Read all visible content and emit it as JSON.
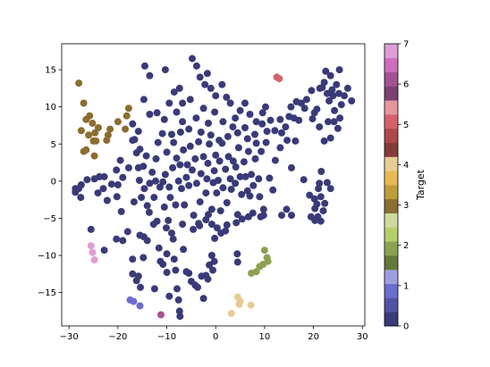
{
  "chart_data": {
    "type": "scatter",
    "title": "",
    "xlabel": "",
    "ylabel": "",
    "xlim": [
      -31.5,
      30.5
    ],
    "ylim": [
      -19.5,
      18.5
    ],
    "xticks": [
      -30,
      -20,
      -10,
      0,
      10,
      20,
      30
    ],
    "yticks": [
      -15,
      -10,
      -5,
      0,
      5,
      10,
      15
    ],
    "grid": false,
    "colorbar": {
      "label": "Target",
      "range": [
        0,
        7
      ],
      "ticks": [
        0,
        1,
        2,
        3,
        4,
        5,
        6,
        7
      ],
      "colors": [
        "#393b79",
        "#5254a3",
        "#6b6ecf",
        "#9c9ede",
        "#637939",
        "#8ca252",
        "#b5cf6b",
        "#cedb9c",
        "#8c6d31",
        "#bd9e39",
        "#e7ba52",
        "#e7cb94",
        "#843c39",
        "#ad494a",
        "#d6616b",
        "#e7969c",
        "#7b4173",
        "#a55194",
        "#ce6dbd",
        "#de9ed6"
      ]
    },
    "classes": [
      {
        "target": 0,
        "color": "#393b79"
      },
      {
        "target": 1,
        "color": "#6b6ecf"
      },
      {
        "target": 2,
        "color": "#8ca252"
      },
      {
        "target": 3,
        "color": "#8c6d31"
      },
      {
        "target": 4,
        "color": "#e7cb94"
      },
      {
        "target": 5,
        "color": "#d6616b"
      },
      {
        "target": 6,
        "color": "#a55194"
      },
      {
        "target": 7,
        "color": "#de9ed6"
      }
    ],
    "points": [
      [
        -28,
        13.2,
        3
      ],
      [
        -27,
        10.5,
        3
      ],
      [
        -26.5,
        8.3,
        3
      ],
      [
        -25.8,
        8.8,
        3
      ],
      [
        -25.2,
        7.8,
        3
      ],
      [
        -24.7,
        6.5,
        3
      ],
      [
        -27.5,
        6.8,
        3
      ],
      [
        -26,
        6.2,
        3
      ],
      [
        -25,
        5.4,
        3
      ],
      [
        -24.5,
        5.4,
        3
      ],
      [
        -24,
        7.2,
        3
      ],
      [
        -22,
        6.2,
        3
      ],
      [
        -22.3,
        5.5,
        3
      ],
      [
        -21.6,
        7.0,
        3
      ],
      [
        -20,
        8.0,
        3
      ],
      [
        -17.8,
        9.8,
        3
      ],
      [
        -18.2,
        8.8,
        3
      ],
      [
        -18.5,
        7.0,
        3
      ],
      [
        -27,
        4.0,
        3
      ],
      [
        -26.5,
        4.2,
        3
      ],
      [
        -24.8,
        3.4,
        3
      ],
      [
        -25.5,
        -8.7,
        7
      ],
      [
        -25.2,
        -9.6,
        7
      ],
      [
        -24.8,
        -10.6,
        7
      ],
      [
        -17.5,
        -16.0,
        1
      ],
      [
        -16.8,
        -16.2,
        1
      ],
      [
        -15.5,
        -16.8,
        1
      ],
      [
        -11.2,
        -18.0,
        6
      ],
      [
        12.5,
        14.0,
        5
      ],
      [
        13,
        13.8,
        5
      ],
      [
        10,
        -9.3,
        2
      ],
      [
        10.5,
        -10.3,
        2
      ],
      [
        10.7,
        -10.8,
        2
      ],
      [
        9.7,
        -11.2,
        2
      ],
      [
        9.0,
        -11.5,
        2
      ],
      [
        8.3,
        -12.2,
        2
      ],
      [
        7.3,
        -12.4,
        2
      ],
      [
        4.5,
        -15.6,
        4
      ],
      [
        5,
        -16.2,
        4
      ],
      [
        4.8,
        -16.6,
        4
      ],
      [
        7.2,
        -16.7,
        4
      ],
      [
        3.2,
        -17.8,
        4
      ],
      [
        -28.7,
        -1.0,
        0
      ],
      [
        -28.7,
        -1.5,
        0
      ],
      [
        -28,
        -1.0,
        0
      ],
      [
        -27.5,
        -0.5,
        0
      ],
      [
        -26.3,
        0.2,
        0
      ],
      [
        -24.8,
        0.3,
        0
      ],
      [
        -23.8,
        0.6,
        0
      ],
      [
        -23.0,
        -1.0,
        0
      ],
      [
        -22.8,
        0.6,
        0
      ],
      [
        -21.3,
        -0.4,
        0
      ],
      [
        -20.2,
        -2.1,
        0
      ],
      [
        -20.3,
        1.5,
        0
      ],
      [
        -20,
        -0.5,
        0
      ],
      [
        -19.5,
        2.8,
        0
      ],
      [
        -19,
        0.5,
        0
      ],
      [
        -17.8,
        1.8,
        0
      ],
      [
        -17.0,
        5.5,
        0
      ],
      [
        -16.6,
        5.6,
        0
      ],
      [
        -16.2,
        3.8,
        0
      ],
      [
        -15.8,
        1.8,
        0
      ],
      [
        -15.6,
        0.1,
        0
      ],
      [
        -15.2,
        -2.2,
        0
      ],
      [
        -15.5,
        4.3,
        0
      ],
      [
        -14.8,
        2.0,
        0
      ],
      [
        -14.6,
        -1.0,
        0
      ],
      [
        -14.2,
        3.4,
        0
      ],
      [
        -14.0,
        -3.3,
        0
      ],
      [
        -13.5,
        -0.3,
        0
      ],
      [
        -13.0,
        1.2,
        0
      ],
      [
        -12.7,
        -5.8,
        0
      ],
      [
        -12.6,
        -2.2,
        0
      ],
      [
        -12.3,
        0.0,
        0
      ],
      [
        -12.2,
        3.0,
        0
      ],
      [
        -11.8,
        5.2,
        0
      ],
      [
        -11.4,
        -0.8,
        0
      ],
      [
        -10.8,
        -0.1,
        0
      ],
      [
        -10.5,
        -3.5,
        0
      ],
      [
        -10.3,
        0.9,
        0
      ],
      [
        -10,
        3.9,
        0
      ],
      [
        -9.5,
        -0.8,
        0
      ],
      [
        -9.3,
        -2.2,
        0
      ],
      [
        -8.8,
        1.8,
        0
      ],
      [
        -8.6,
        5.2,
        0
      ],
      [
        -8.2,
        -3.2,
        0
      ],
      [
        -8,
        3.1,
        0
      ],
      [
        -7.6,
        0.0,
        0
      ],
      [
        -7.3,
        2.2,
        0
      ],
      [
        -7,
        -1.0,
        0
      ],
      [
        -6.6,
        4.2,
        0
      ],
      [
        -6.4,
        -3.2,
        0
      ],
      [
        -6,
        0.5,
        0
      ],
      [
        -5.8,
        2.2,
        0
      ],
      [
        -5.5,
        -0.6,
        0
      ],
      [
        -5.2,
        4.7,
        0
      ],
      [
        -4.8,
        1.5,
        0
      ],
      [
        -4.5,
        -4.6,
        0
      ],
      [
        -4.2,
        3.0,
        0
      ],
      [
        -3.9,
        -0.3,
        0
      ],
      [
        -3.5,
        5.3,
        0
      ],
      [
        -3.2,
        -2.8,
        0
      ],
      [
        -3,
        1.0,
        0
      ],
      [
        -2.5,
        3.3,
        0
      ],
      [
        -2.0,
        -1.6,
        0
      ],
      [
        -1.8,
        0.3,
        0
      ],
      [
        -1.6,
        2.4,
        0
      ],
      [
        -1.3,
        5.0,
        0
      ],
      [
        -0.8,
        -3.8,
        0
      ],
      [
        -0.5,
        -0.2,
        0
      ],
      [
        -0.3,
        1.4,
        0
      ],
      [
        0,
        3.5,
        0
      ],
      [
        0.2,
        -1.6,
        0
      ],
      [
        0.5,
        0.1,
        0
      ],
      [
        0.8,
        2.7,
        0
      ],
      [
        1.0,
        -4.0,
        0
      ],
      [
        1.3,
        5.1,
        0
      ],
      [
        1.5,
        -0.9,
        0
      ],
      [
        2,
        1.6,
        0
      ],
      [
        2.3,
        -2.9,
        0
      ],
      [
        2.6,
        3.3,
        0
      ],
      [
        3,
        0.3,
        0
      ],
      [
        3.2,
        -1.1,
        0
      ],
      [
        3.6,
        2.7,
        0
      ],
      [
        4,
        -0.3,
        0
      ],
      [
        4.1,
        1.9,
        0
      ],
      [
        4.5,
        -4.5,
        0
      ],
      [
        4.7,
        4.5,
        0
      ],
      [
        5,
        0.6,
        0
      ],
      [
        5.3,
        -1.8,
        0
      ],
      [
        5.8,
        2.6,
        0
      ],
      [
        6.1,
        0.6,
        0
      ],
      [
        6.5,
        -1.3,
        0
      ],
      [
        6.7,
        4.0,
        0
      ],
      [
        7.0,
        -2.0,
        0
      ],
      [
        7.3,
        0.9,
        0
      ],
      [
        7.7,
        -0.6,
        0
      ],
      [
        8.1,
        3.0,
        0
      ],
      [
        8.3,
        5.1,
        0
      ],
      [
        8.8,
        0.3,
        0
      ],
      [
        9,
        -2.1,
        0
      ],
      [
        9.3,
        4.0,
        0
      ],
      [
        9.8,
        -3.8,
        0
      ],
      [
        10.3,
        5.2,
        0
      ],
      [
        11,
        0.4,
        0
      ],
      [
        11.7,
        -1.2,
        0
      ],
      [
        12.2,
        2.8,
        0
      ],
      [
        13.5,
        6.5,
        0
      ],
      [
        13.2,
        4.5,
        0
      ],
      [
        14.6,
        5.5,
        0
      ],
      [
        16.3,
        5.4,
        0
      ],
      [
        15.5,
        1.8,
        0
      ],
      [
        -12.5,
        -14.5,
        0
      ],
      [
        -15.4,
        -14.3,
        0
      ],
      [
        -17,
        -12.5,
        0
      ],
      [
        -16.2,
        -13.4,
        0
      ],
      [
        -15.8,
        -12.8,
        0
      ],
      [
        -14.8,
        -10.3,
        0
      ],
      [
        -15.5,
        -7.3,
        0
      ],
      [
        -14.7,
        -7.5,
        0
      ],
      [
        -14,
        -8.0,
        0
      ],
      [
        -11.6,
        -9.0,
        0
      ],
      [
        -11.3,
        -10.8,
        0
      ],
      [
        -10.8,
        -11.2,
        0
      ],
      [
        -10,
        -12.3,
        0
      ],
      [
        -10,
        -9.8,
        0
      ],
      [
        -9.5,
        -15.5,
        0
      ],
      [
        -9,
        -7.0,
        0
      ],
      [
        -8.7,
        -7.8,
        0
      ],
      [
        -8.5,
        -10.5,
        0
      ],
      [
        -8.2,
        -12.0,
        0
      ],
      [
        -7.9,
        -14.5,
        0
      ],
      [
        -7.6,
        -16.0,
        0
      ],
      [
        -7.4,
        -17.5,
        0
      ],
      [
        -7.3,
        -18.2,
        0
      ],
      [
        -6.6,
        -9.2,
        0
      ],
      [
        -6,
        -12.2,
        0
      ],
      [
        -5.5,
        -12.4,
        0
      ],
      [
        -5,
        -13.5,
        0
      ],
      [
        -4.2,
        -14.0,
        0
      ],
      [
        -3.7,
        -14.3,
        0
      ],
      [
        -2.9,
        -12.8,
        0
      ],
      [
        -2.5,
        -15.8,
        0
      ],
      [
        -2.0,
        -12.7,
        0
      ],
      [
        -1.6,
        -13.2,
        0
      ],
      [
        -1.3,
        -11.3,
        0
      ],
      [
        -0.8,
        -10.0,
        0
      ],
      [
        -0.3,
        -10.8,
        0
      ],
      [
        -0.2,
        -7.7,
        0
      ],
      [
        -0.6,
        -12.0,
        0
      ],
      [
        2.0,
        -6.7,
        0
      ],
      [
        4.4,
        -9.8,
        0
      ],
      [
        4.5,
        -10.9,
        0
      ],
      [
        -25.5,
        -6.5,
        0
      ],
      [
        -22.8,
        -9.3,
        0
      ],
      [
        -18,
        -6.8,
        0
      ],
      [
        -17,
        -10.5,
        0
      ],
      [
        -19,
        -8.0,
        0
      ],
      [
        -20.3,
        -7.8,
        0
      ],
      [
        -14.5,
        15.5,
        0
      ],
      [
        -13.5,
        14.2,
        0
      ],
      [
        -10.3,
        15.0,
        0
      ],
      [
        -8.5,
        12.0,
        0
      ],
      [
        -7.4,
        12.5,
        0
      ],
      [
        -6.8,
        10.5,
        0
      ],
      [
        -5.2,
        11.0,
        0
      ],
      [
        -4.8,
        16.5,
        0
      ],
      [
        -3.9,
        15.5,
        0
      ],
      [
        -3.2,
        14.0,
        0
      ],
      [
        -2.2,
        13.0,
        0
      ],
      [
        -1.7,
        14.5,
        0
      ],
      [
        -1.0,
        12.5,
        0
      ],
      [
        0,
        11.5,
        0
      ],
      [
        1.3,
        13.0,
        0
      ],
      [
        2.2,
        11.3,
        0
      ],
      [
        3.0,
        10.5,
        0
      ],
      [
        4.0,
        8.5,
        0
      ],
      [
        5.0,
        9.5,
        0
      ],
      [
        6.0,
        10.5,
        0
      ],
      [
        7.0,
        9.0,
        0
      ],
      [
        8.3,
        8.0,
        0
      ],
      [
        9.6,
        9.2,
        0
      ],
      [
        10.2,
        10.0,
        0
      ],
      [
        11.2,
        8.2,
        0
      ],
      [
        12.1,
        6.8,
        0
      ],
      [
        13.2,
        8.3,
        0
      ],
      [
        14.3,
        7.3,
        0
      ],
      [
        15.0,
        8.7,
        0
      ],
      [
        -14.7,
        11.0,
        0
      ],
      [
        -13.5,
        9.0,
        0
      ],
      [
        -12.0,
        9.2,
        0
      ],
      [
        -10.5,
        8.3,
        0
      ],
      [
        -9.5,
        10.5,
        0
      ],
      [
        -8,
        9.3,
        0
      ],
      [
        -6.8,
        8.0,
        0
      ],
      [
        -4,
        8.5,
        0
      ],
      [
        -2.5,
        9.8,
        0
      ],
      [
        -1.5,
        7.8,
        0
      ],
      [
        -0.2,
        9.3,
        0
      ],
      [
        1.5,
        8.0,
        0
      ],
      [
        3.5,
        7.3,
        0
      ],
      [
        4.5,
        6.5,
        0
      ],
      [
        6.0,
        7.2,
        0
      ],
      [
        8.0,
        6.3,
        0
      ],
      [
        9.5,
        7.7,
        0
      ],
      [
        10.5,
        6.7,
        0
      ],
      [
        -17.0,
        7.7,
        0
      ],
      [
        -15.8,
        6.7,
        0
      ],
      [
        -10.9,
        6.4,
        0
      ],
      [
        -9.0,
        6.3,
        0
      ],
      [
        -7.2,
        6.6,
        0
      ],
      [
        -5.5,
        7.0,
        0
      ],
      [
        -3.0,
        6.6,
        0
      ],
      [
        -1.0,
        6.2,
        0
      ],
      [
        0.7,
        5.5,
        0
      ],
      [
        2.5,
        6.0,
        0
      ],
      [
        6.5,
        5.7,
        0
      ],
      [
        17.5,
        10.5,
        0
      ],
      [
        18.6,
        11.0,
        0
      ],
      [
        19.6,
        12.2,
        0
      ],
      [
        20.2,
        9.2,
        0
      ],
      [
        20.7,
        9.7,
        0
      ],
      [
        21.3,
        12.5,
        0
      ],
      [
        21.8,
        12.6,
        0
      ],
      [
        22.2,
        13.3,
        0
      ],
      [
        22.8,
        11.8,
        0
      ],
      [
        23.2,
        10.8,
        0
      ],
      [
        23.5,
        14.2,
        0
      ],
      [
        23.8,
        12.3,
        0
      ],
      [
        24,
        11.5,
        0
      ],
      [
        24.3,
        9.5,
        0
      ],
      [
        24.7,
        13.0,
        0
      ],
      [
        25.2,
        11.8,
        0
      ],
      [
        25.7,
        10.3,
        0
      ],
      [
        26.3,
        11.5,
        0
      ],
      [
        27,
        12.5,
        0
      ],
      [
        27.8,
        10.8,
        0
      ],
      [
        25.3,
        15.0,
        0
      ],
      [
        22.5,
        14.8,
        0
      ],
      [
        16.5,
        10.7,
        0
      ],
      [
        15.4,
        10.0,
        0
      ],
      [
        16.0,
        8.5,
        0
      ],
      [
        17.0,
        8.2,
        0
      ],
      [
        18.2,
        9.8,
        0
      ],
      [
        19.8,
        8.4,
        0
      ],
      [
        21.2,
        7.3,
        0
      ],
      [
        22.2,
        5.4,
        0
      ],
      [
        23.0,
        8.0,
        0
      ],
      [
        24.2,
        8.0,
        0
      ],
      [
        25.0,
        7.1,
        0
      ],
      [
        23.5,
        5.8,
        0
      ],
      [
        25.4,
        8.5,
        0
      ],
      [
        18.0,
        0.2,
        0
      ],
      [
        19.2,
        -1.9,
        0
      ],
      [
        20.2,
        -2.4,
        0
      ],
      [
        20.7,
        -3.1,
        0
      ],
      [
        21.5,
        -2.1,
        0
      ],
      [
        21.2,
        -0.3,
        0
      ],
      [
        20.3,
        -3.7,
        0
      ],
      [
        20.9,
        -4.8,
        0
      ],
      [
        21.5,
        -5.4,
        0
      ],
      [
        20.3,
        -5.3,
        0
      ],
      [
        19.5,
        -4.8,
        0
      ],
      [
        22,
        -4.0,
        0
      ],
      [
        21,
        -1.0,
        0
      ],
      [
        22.8,
        -0.2,
        0
      ],
      [
        22.3,
        -3.0,
        0
      ],
      [
        23.5,
        -1.0,
        0
      ],
      [
        21.6,
        1.3,
        0
      ],
      [
        15.5,
        -4.6,
        0
      ],
      [
        14.5,
        -3.8,
        0
      ],
      [
        13.5,
        -4.6,
        0
      ],
      [
        9.8,
        -4.6,
        0
      ],
      [
        9.2,
        -4.8,
        0
      ],
      [
        7.6,
        -4.3,
        0
      ],
      [
        6.7,
        -4.8,
        0
      ],
      [
        5.4,
        -5.1,
        0
      ],
      [
        -1.5,
        -4.5,
        0
      ],
      [
        -3.3,
        -6.0,
        0
      ],
      [
        0.3,
        -6.3,
        0
      ],
      [
        -10.1,
        -6.3,
        0
      ],
      [
        -12.0,
        -5.4,
        0
      ],
      [
        -13.6,
        -4.2,
        0
      ],
      [
        -16.7,
        -2.8,
        0
      ],
      [
        -19.3,
        -4.1,
        0
      ],
      [
        -22.2,
        -2.6,
        0
      ],
      [
        -27.6,
        -2.2,
        0
      ],
      [
        -24.1,
        -1.6,
        0
      ],
      [
        -6.8,
        -5.8,
        0
      ],
      [
        -9.7,
        -5.3,
        0
      ],
      [
        -4.6,
        -6.5,
        0
      ],
      [
        -3.5,
        -5.7,
        0
      ],
      [
        -2,
        -5.2,
        0
      ],
      [
        -0.8,
        -5.8,
        0
      ],
      [
        1.1,
        -7.0,
        0
      ],
      [
        2.3,
        -5.9,
        0
      ],
      [
        4.2,
        -5.6,
        0
      ]
    ]
  }
}
